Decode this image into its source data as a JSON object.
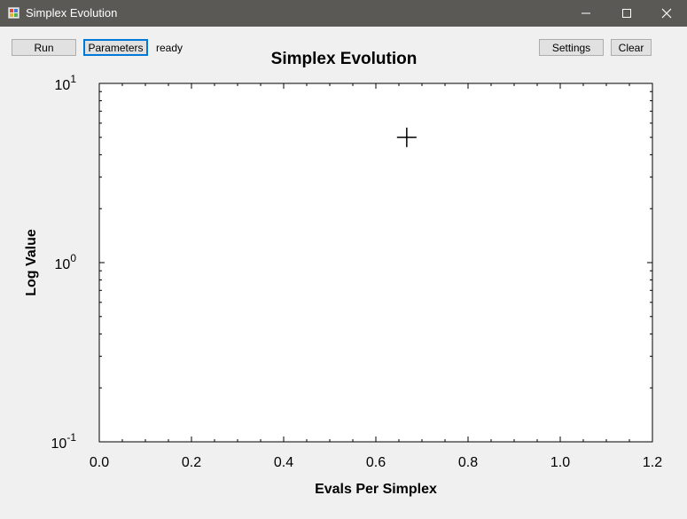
{
  "window": {
    "title": "Simplex Evolution",
    "controls": [
      "minimize",
      "maximize",
      "close"
    ]
  },
  "toolbar": {
    "run_label": "Run",
    "parameters_label": "Parameters",
    "status": "ready",
    "settings_label": "Settings",
    "clear_label": "Clear"
  },
  "chart_data": {
    "type": "scatter",
    "title": "Simplex Evolution",
    "xlabel": "Evals Per Simplex",
    "ylabel": "Log Value",
    "xlim": [
      0.0,
      1.2
    ],
    "ylim": [
      0.1,
      10
    ],
    "yscale": "log",
    "x_ticks": [
      "0.0",
      "0.2",
      "0.4",
      "0.6",
      "0.8",
      "1.0",
      "1.2"
    ],
    "y_ticks": [
      {
        "base": "10",
        "exp": "-1",
        "value": 0.1
      },
      {
        "base": "10",
        "exp": "0",
        "value": 1
      },
      {
        "base": "10",
        "exp": "1",
        "value": 10
      }
    ],
    "grid": false,
    "marker": "plus",
    "points": [
      {
        "x": 0.667,
        "y": 5.0
      }
    ]
  }
}
